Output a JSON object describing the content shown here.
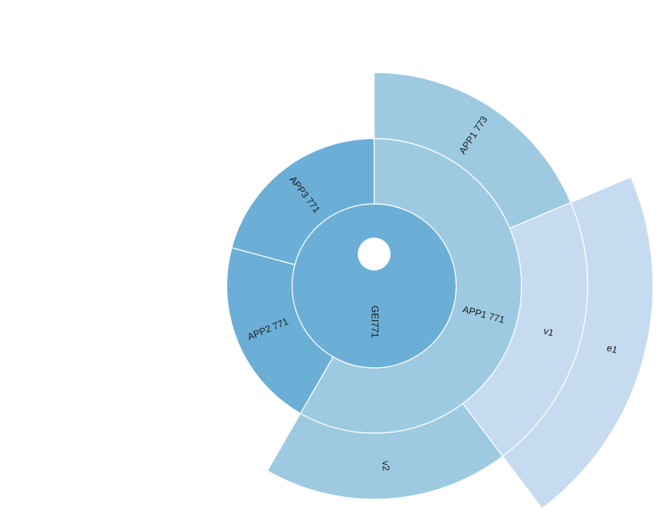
{
  "chart_data": {
    "type": "sunburst",
    "title": "",
    "nodes": [
      {
        "id": "root",
        "label": "",
        "depth": 0,
        "start_deg": 0,
        "end_deg": 360,
        "color": "#3182bd"
      },
      {
        "id": "gei",
        "label": "GEI771",
        "depth": 1,
        "start_deg": 0,
        "end_deg": 360,
        "color": "#6baed6"
      },
      {
        "id": "app1",
        "label": "APP1 771",
        "depth": 2,
        "start_deg": 0,
        "end_deg": 210,
        "color": "#9ecae1"
      },
      {
        "id": "app2",
        "label": "APP2 771",
        "depth": 2,
        "start_deg": 210,
        "end_deg": 285,
        "color": "#6baed6"
      },
      {
        "id": "app3",
        "label": "APP3 771",
        "depth": 2,
        "start_deg": 285,
        "end_deg": 360,
        "color": "#6baed6"
      },
      {
        "id": "app13",
        "label": "APP1 773",
        "depth": 3,
        "start_deg": 0,
        "end_deg": 67,
        "color": "#9ecae1"
      },
      {
        "id": "v1",
        "label": "v1",
        "depth": 3,
        "start_deg": 67,
        "end_deg": 143,
        "color": "#c6dbef"
      },
      {
        "id": "v2",
        "label": "v2",
        "depth": 3,
        "start_deg": 143,
        "end_deg": 210,
        "color": "#9ecae1"
      },
      {
        "id": "e1",
        "label": "e1",
        "depth": 4,
        "start_deg": 67,
        "end_deg": 143,
        "color": "#c6dbef"
      }
    ]
  }
}
